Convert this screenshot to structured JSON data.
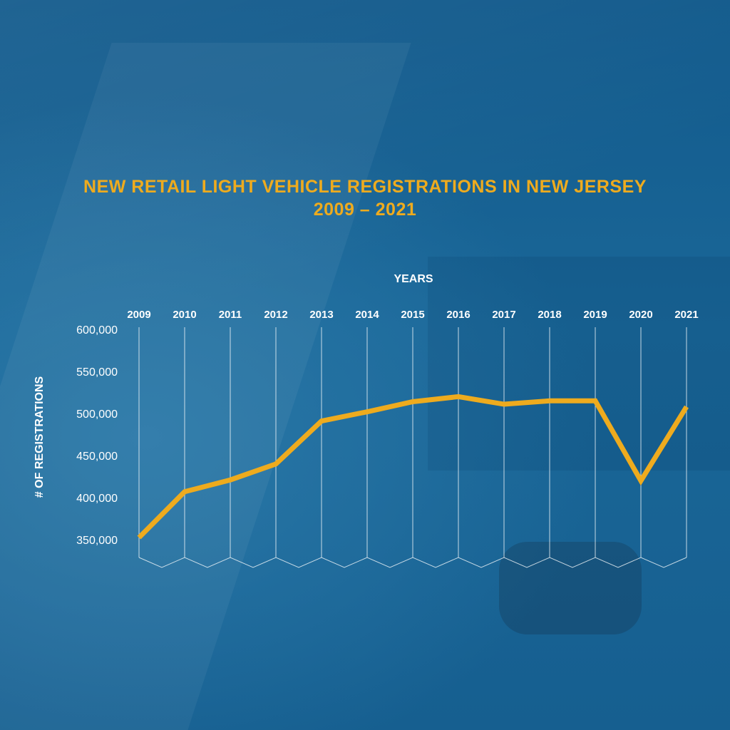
{
  "chart_data": {
    "type": "line",
    "title": "NEW RETAIL LIGHT VEHICLE REGISTRATIONS IN NEW JERSEY",
    "subtitle": "2009 – 2021",
    "xlabel": "YEARS",
    "ylabel": "# OF REGISTRATIONS",
    "categories": [
      "2009",
      "2010",
      "2011",
      "2012",
      "2013",
      "2014",
      "2015",
      "2016",
      "2017",
      "2018",
      "2019",
      "2020",
      "2021"
    ],
    "series": [
      {
        "name": "Registrations",
        "values": [
          352500,
          407000,
          421000,
          440000,
          491000,
          502000,
          514000,
          520000,
          511000,
          515000,
          515000,
          420000,
          508000
        ]
      }
    ],
    "ylim": [
      350000,
      600000
    ],
    "yticks": [
      600000,
      550000,
      500000,
      450000,
      400000,
      350000
    ],
    "ytick_labels": [
      "600,000",
      "550,000",
      "500,000",
      "450,000",
      "400,000",
      "350,000"
    ],
    "grid": "vertical",
    "colors": {
      "line": "#eeab1e",
      "text": "#ffffff",
      "title": "#eeab1e",
      "background": "#1a6496"
    }
  }
}
